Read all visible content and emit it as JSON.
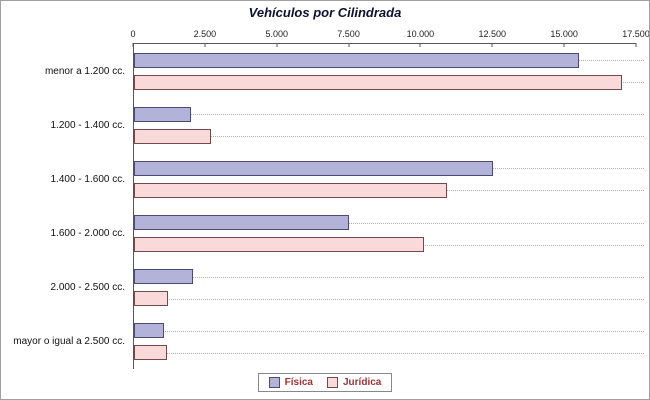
{
  "chart_data": {
    "type": "bar",
    "orientation": "horizontal",
    "title": "Vehículos por Cilindrada",
    "categories": [
      "menor a 1.200 cc.",
      "1.200 - 1.400 cc.",
      "1.400 - 1.600 cc.",
      "1.600 - 2.000 cc.",
      "2.000 - 2.500 cc.",
      "mayor o igual a 2.500 cc."
    ],
    "series": [
      {
        "name": "Física",
        "color": "#b3b3d9",
        "border": "#4a4a73",
        "values": [
          15500,
          2000,
          12500,
          7500,
          2050,
          1050
        ]
      },
      {
        "name": "Jurídica",
        "color": "#f9d9d9",
        "border": "#734a4a",
        "values": [
          17000,
          2700,
          10900,
          10100,
          1200,
          1150
        ]
      }
    ],
    "x_axis": {
      "ticks": [
        "0",
        "2.500",
        "5.000",
        "7.500",
        "10.000",
        "12.500",
        "15.000",
        "17.500"
      ],
      "tick_values": [
        0,
        2500,
        5000,
        7500,
        10000,
        12500,
        15000,
        17500
      ],
      "max": 17500
    },
    "grid": "dotted-horizontal",
    "legend_position": "bottom",
    "colors": {
      "title_text": "#101030",
      "axis_line": "#555555",
      "tick_text": "#222222",
      "category_text": "#111111",
      "gridline": "#b0b0b0",
      "legend_text": "#993333"
    }
  }
}
